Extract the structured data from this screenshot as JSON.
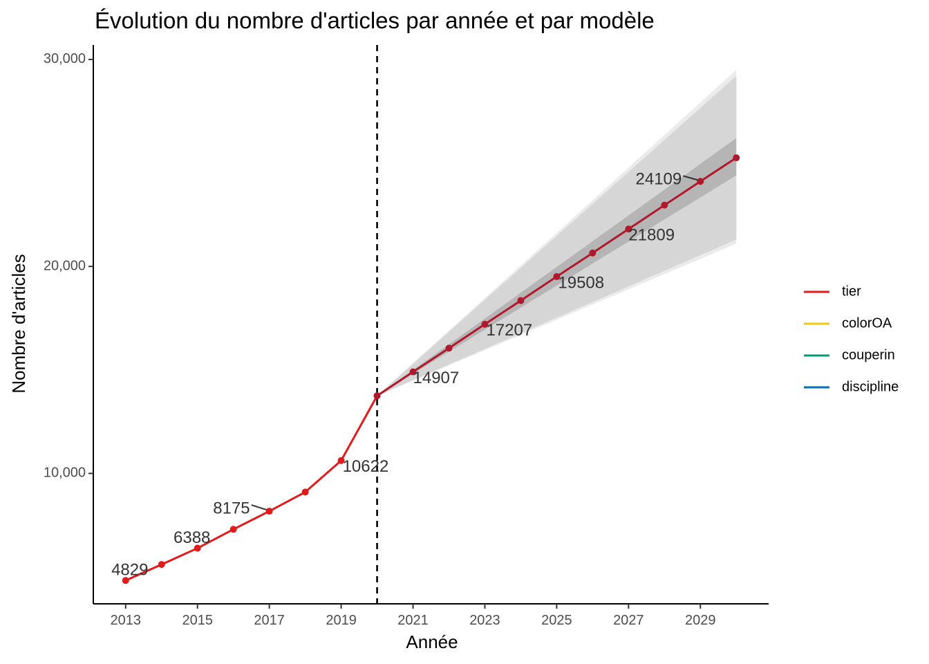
{
  "chart_data": {
    "type": "line",
    "title": "Évolution du nombre d'articles par année et par modèle",
    "xlabel": "Année",
    "ylabel": "Nombre d'articles",
    "xlim": [
      2012.1,
      2030.9
    ],
    "ylim": [
      3700,
      30700
    ],
    "x_ticks": [
      2013,
      2015,
      2017,
      2019,
      2021,
      2023,
      2025,
      2027,
      2029
    ],
    "x_tick_labels": [
      "2013",
      "2015",
      "2017",
      "2019",
      "2021",
      "2023",
      "2025",
      "2027",
      "2029"
    ],
    "y_ticks": [
      10000,
      20000,
      30000
    ],
    "y_tick_labels": [
      "10,000",
      "20,000",
      "30,000"
    ],
    "grid": false,
    "vline": {
      "x": 2020,
      "style": "dashed"
    },
    "series": [
      {
        "name": "tier",
        "color": "#e31a1c",
        "x": [
          2013,
          2014,
          2015,
          2016,
          2017,
          2018,
          2019,
          2020
        ],
        "y": [
          4829,
          5600,
          6388,
          7300,
          8175,
          9100,
          10622,
          13750
        ]
      },
      {
        "name": "tier",
        "kind": "forecast",
        "color": "#b2182b",
        "x": [
          2020,
          2021,
          2022,
          2023,
          2024,
          2025,
          2026,
          2027,
          2028,
          2029,
          2030
        ],
        "y": [
          13750,
          14907,
          16050,
          17207,
          18350,
          19508,
          20650,
          21809,
          22960,
          24109,
          25250
        ]
      }
    ],
    "forecast_bands": [
      {
        "level": "outer",
        "color": "#ebebeb",
        "x": [
          2020,
          2030
        ],
        "lower": [
          13750,
          21100
        ],
        "upper": [
          13750,
          29500
        ]
      },
      {
        "level": "mid",
        "color": "#d6d6d6",
        "x": [
          2020,
          2030
        ],
        "lower": [
          13750,
          21300
        ],
        "upper": [
          13750,
          29200
        ]
      },
      {
        "level": "inner",
        "color": "#b5b5b5",
        "x": [
          2020,
          2030
        ],
        "lower": [
          13750,
          24400
        ],
        "upper": [
          13750,
          26200
        ]
      }
    ],
    "annotations": [
      {
        "text": "4829",
        "x": 2013,
        "y": 4829
      },
      {
        "text": "6388",
        "x": 2015,
        "y": 6388
      },
      {
        "text": "8175",
        "x": 2017,
        "y": 8175
      },
      {
        "text": "10622",
        "x": 2019,
        "y": 10622
      },
      {
        "text": "14907",
        "x": 2021,
        "y": 14907
      },
      {
        "text": "17207",
        "x": 2023,
        "y": 17207
      },
      {
        "text": "19508",
        "x": 2025,
        "y": 19508
      },
      {
        "text": "21809",
        "x": 2027,
        "y": 21809
      },
      {
        "text": "24109",
        "x": 2029,
        "y": 24109
      }
    ],
    "legend": {
      "placement": "right",
      "items": [
        {
          "label": "tier",
          "color": "#e31a1c"
        },
        {
          "label": "colorOA",
          "color": "#f5c710"
        },
        {
          "label": "couperin",
          "color": "#009e73"
        },
        {
          "label": "discipline",
          "color": "#0072b2"
        }
      ]
    }
  }
}
